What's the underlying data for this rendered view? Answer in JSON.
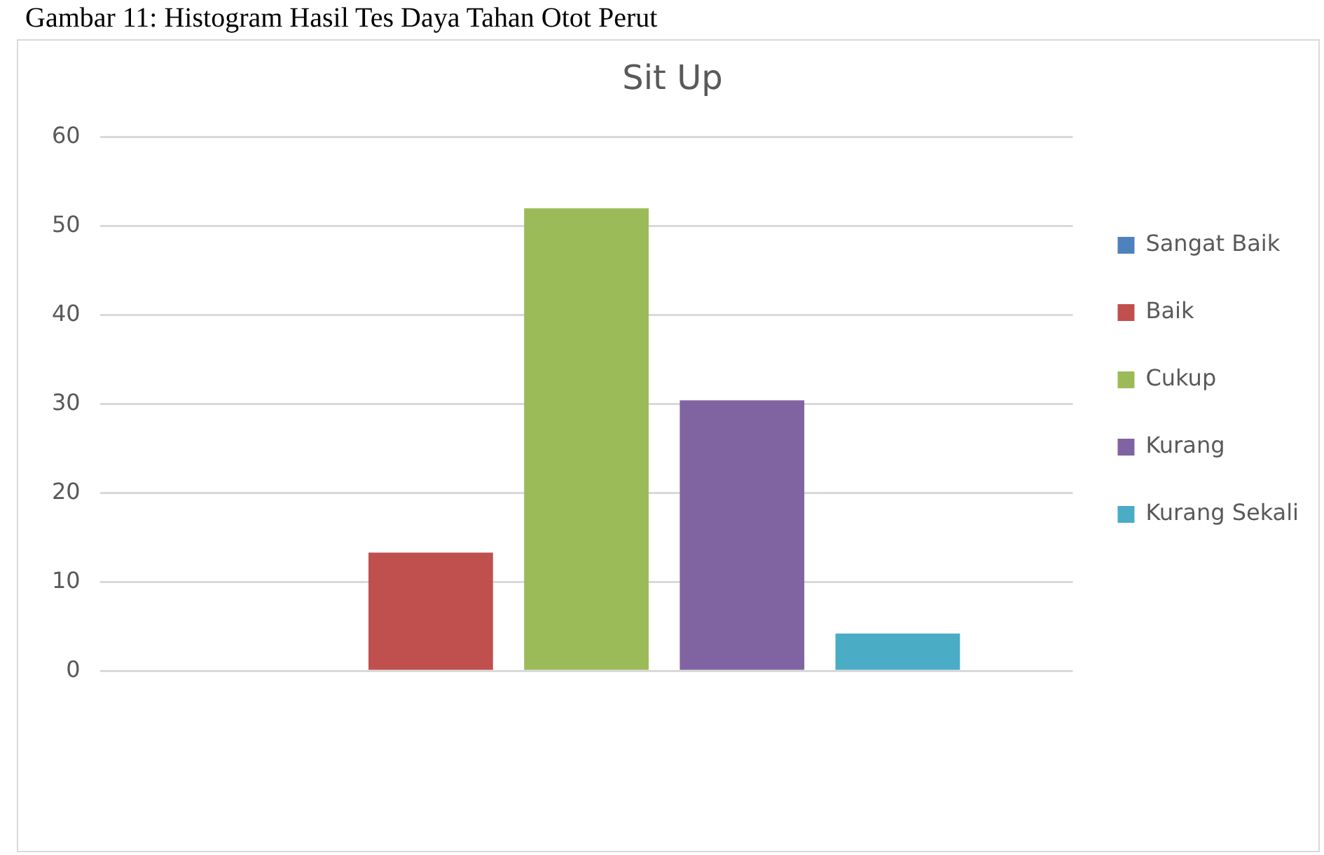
{
  "chart_data": {
    "type": "bar",
    "title": "Sit Up",
    "categories": [
      null
    ],
    "series": [
      {
        "name": "Sangat Baik",
        "color": "#4f81bd",
        "values": [
          0
        ]
      },
      {
        "name": "Baik",
        "color": "#c0504d",
        "values": [
          13.3
        ]
      },
      {
        "name": "Cukup",
        "color": "#9bbb59",
        "values": [
          52.0
        ]
      },
      {
        "name": "Kurang",
        "color": "#8064a2",
        "values": [
          30.4
        ]
      },
      {
        "name": "Kurang Sekali",
        "color": "#4bacc6",
        "values": [
          4.2
        ]
      }
    ],
    "ylim": [
      0,
      60
    ],
    "yticks": [
      0,
      10,
      20,
      30,
      40,
      50,
      60
    ],
    "grid": "y",
    "legend": "right",
    "annotations": [
      "Gambar 11: Histogram Hasil Tes Daya Tahan Otot Perut"
    ]
  }
}
